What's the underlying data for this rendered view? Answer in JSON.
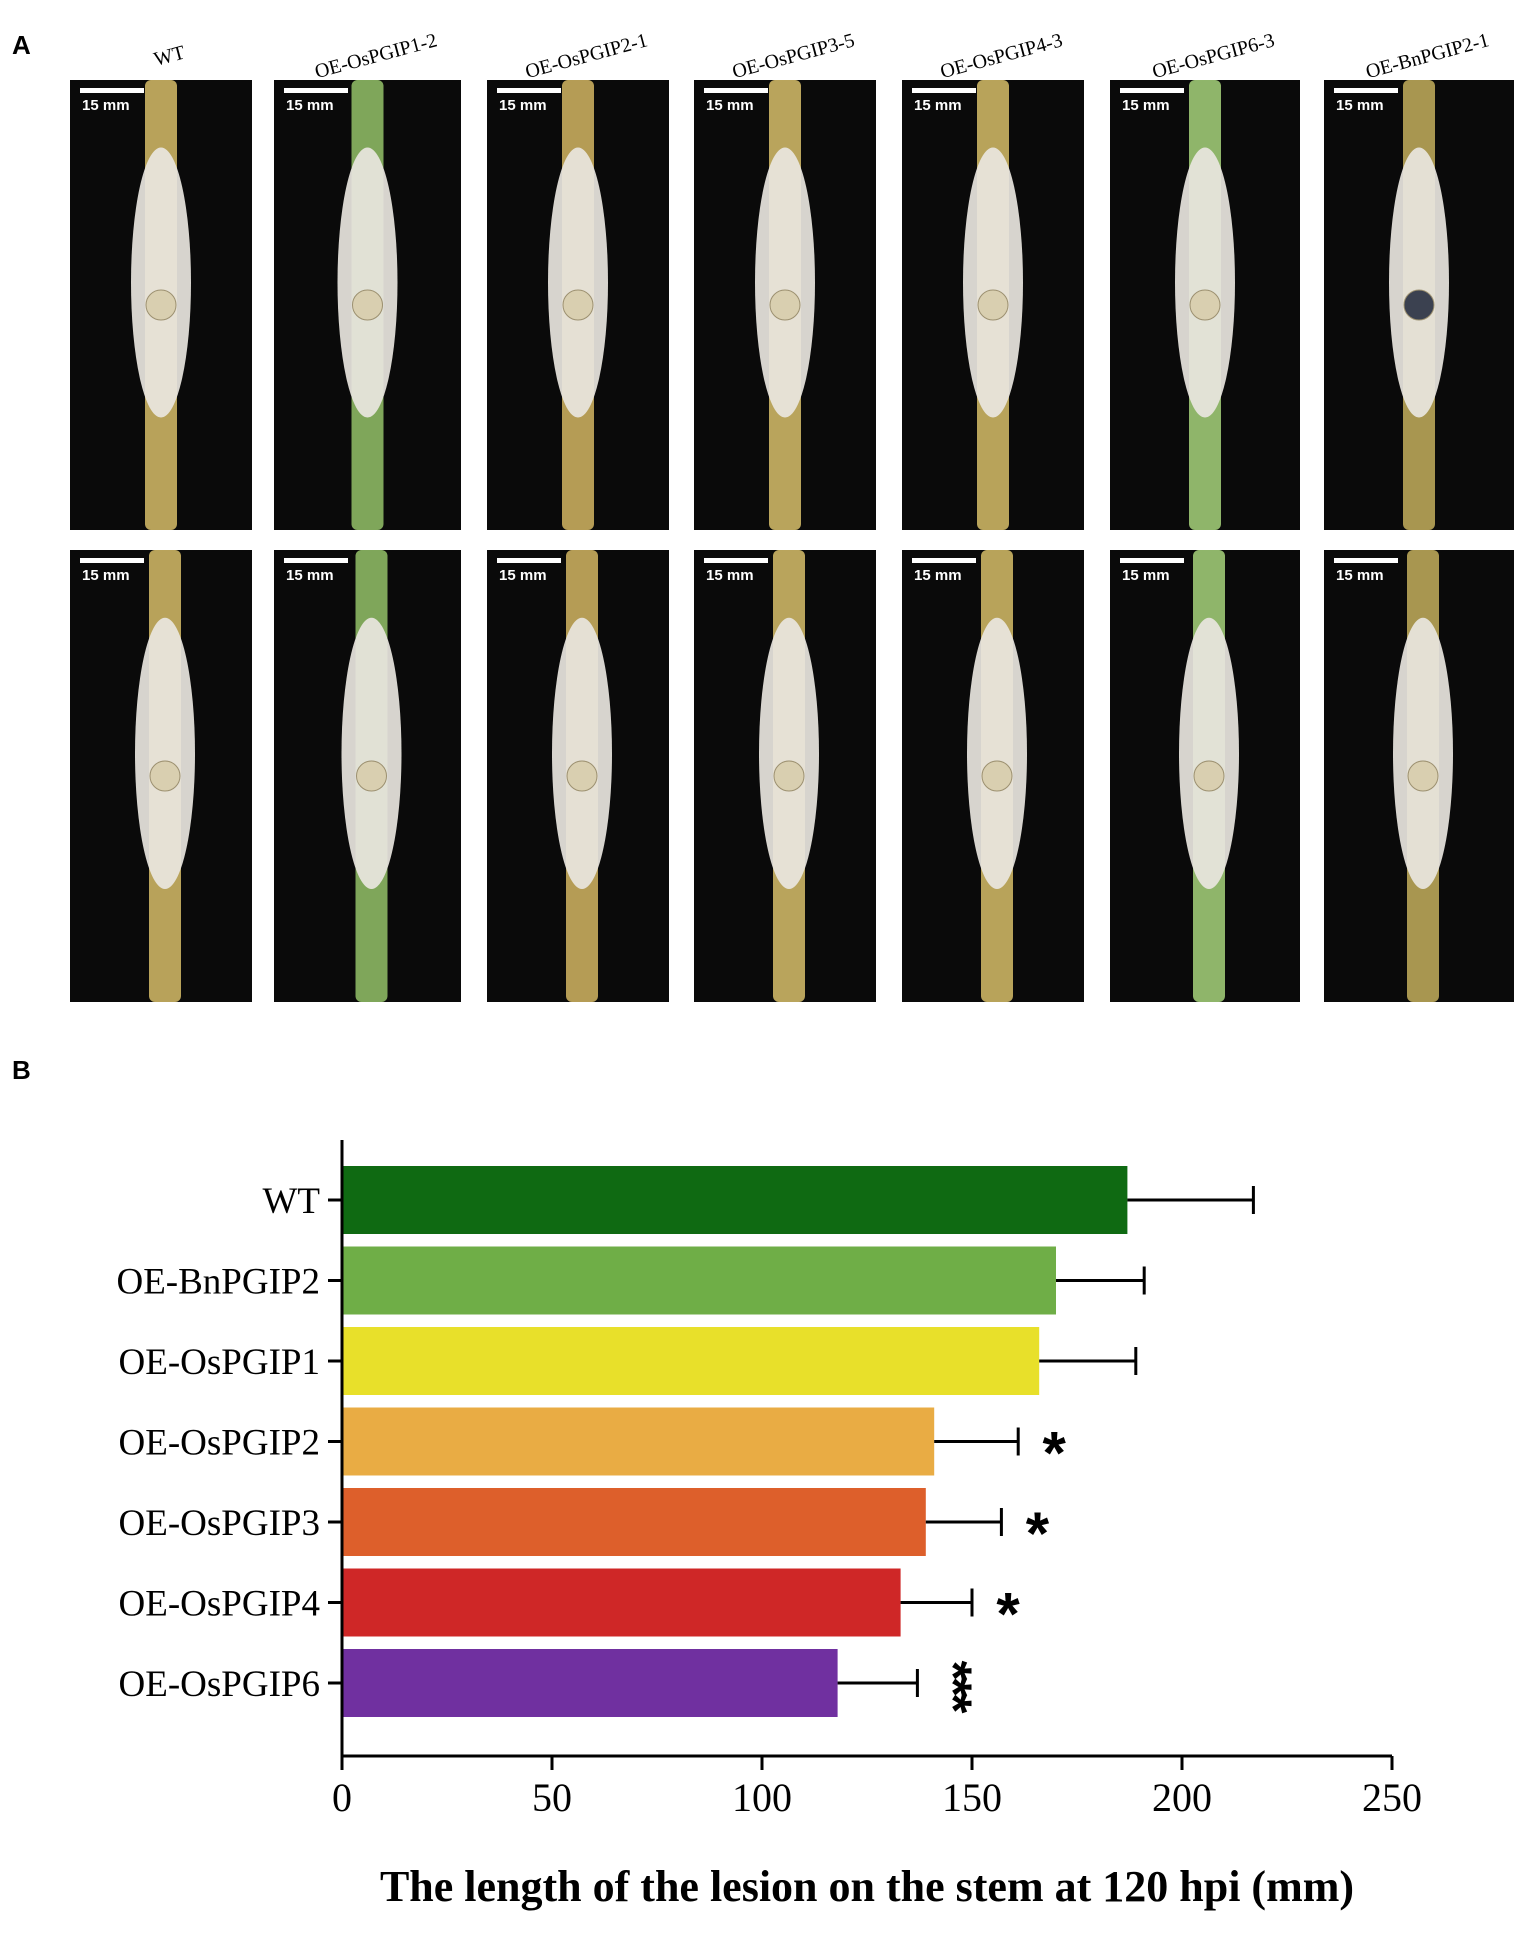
{
  "panel_a": {
    "letter": "A",
    "scale_bar_label": "15 mm",
    "columns": [
      {
        "label": "WT",
        "bg": "#0a0a0a"
      },
      {
        "label": "OE-OsPGIP1-2",
        "bg": "#0a0a0a"
      },
      {
        "label": "OE-OsPGIP2-1",
        "bg": "#0a0a0a"
      },
      {
        "label": "OE-OsPGIP3-5",
        "bg": "#0a0a0a"
      },
      {
        "label": "OE-OsPGIP4-3",
        "bg": "#0a0a0a"
      },
      {
        "label": "OE-OsPGIP6-3",
        "bg": "#0a0a0a"
      },
      {
        "label": "OE-BnPGIP2-1",
        "bg": "#0a0a0a"
      }
    ]
  },
  "panel_b": {
    "letter": "B"
  },
  "chart_data": {
    "type": "bar",
    "orientation": "horizontal",
    "title": "",
    "xlabel": "The length of the lesion on the stem at 120 hpi (mm)",
    "ylabel": "",
    "xlim": [
      0,
      250
    ],
    "xticks": [
      0,
      50,
      100,
      150,
      200,
      250
    ],
    "grid": false,
    "categories": [
      "WT",
      "OE-BnPGIP2",
      "OE-OsPGIP1",
      "OE-OsPGIP2",
      "OE-OsPGIP3",
      "OE-OsPGIP4",
      "OE-OsPGIP6"
    ],
    "values": [
      187,
      170,
      166,
      141,
      139,
      133,
      118
    ],
    "errors": [
      30,
      21,
      23,
      20,
      18,
      17,
      19
    ],
    "significance": [
      "",
      "",
      "",
      "*",
      "*",
      "*",
      "***"
    ],
    "colors": [
      "#0f6a12",
      "#6fae47",
      "#e8e02a",
      "#e9ac44",
      "#dd5f2b",
      "#cf2727",
      "#7030a0"
    ]
  }
}
